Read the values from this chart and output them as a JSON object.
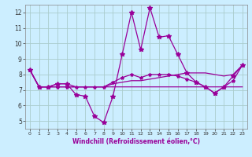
{
  "xlabel": "Windchill (Refroidissement éolien,°C)",
  "hours": [
    0,
    1,
    2,
    3,
    4,
    5,
    6,
    7,
    8,
    9,
    10,
    11,
    12,
    13,
    14,
    15,
    16,
    17,
    18,
    19,
    20,
    21,
    22,
    23
  ],
  "line1": [
    8.3,
    7.2,
    7.2,
    7.4,
    7.4,
    6.7,
    6.6,
    5.3,
    4.9,
    6.6,
    9.3,
    12.0,
    9.6,
    12.3,
    10.4,
    10.5,
    9.3,
    8.1,
    7.5,
    7.2,
    6.8,
    7.2,
    7.9,
    8.6
  ],
  "line2": [
    8.3,
    7.2,
    7.2,
    7.4,
    7.4,
    7.2,
    7.2,
    7.2,
    7.2,
    7.4,
    7.5,
    7.6,
    7.6,
    7.7,
    7.8,
    7.9,
    8.0,
    8.1,
    8.1,
    8.1,
    8.0,
    7.9,
    8.0,
    8.6
  ],
  "line3": [
    8.3,
    7.2,
    7.2,
    7.2,
    7.2,
    7.2,
    7.2,
    7.2,
    7.2,
    7.2,
    7.2,
    7.2,
    7.2,
    7.2,
    7.2,
    7.2,
    7.2,
    7.2,
    7.2,
    7.2,
    7.2,
    7.2,
    7.2,
    7.2
  ],
  "line4": [
    8.3,
    7.2,
    7.2,
    7.2,
    7.2,
    7.2,
    7.2,
    7.2,
    7.2,
    7.5,
    7.8,
    8.0,
    7.8,
    8.0,
    8.0,
    8.0,
    7.9,
    7.7,
    7.5,
    7.2,
    6.8,
    7.2,
    7.6,
    8.6
  ],
  "line_color": "#990099",
  "bg_color": "#cceeff",
  "grid_color": "#aacccc",
  "ylim": [
    4.5,
    12.5
  ],
  "yticks": [
    5,
    6,
    7,
    8,
    9,
    10,
    11,
    12
  ],
  "xticks": [
    0,
    1,
    2,
    3,
    4,
    5,
    6,
    7,
    8,
    9,
    10,
    11,
    12,
    13,
    14,
    15,
    16,
    17,
    18,
    19,
    20,
    21,
    22,
    23
  ]
}
